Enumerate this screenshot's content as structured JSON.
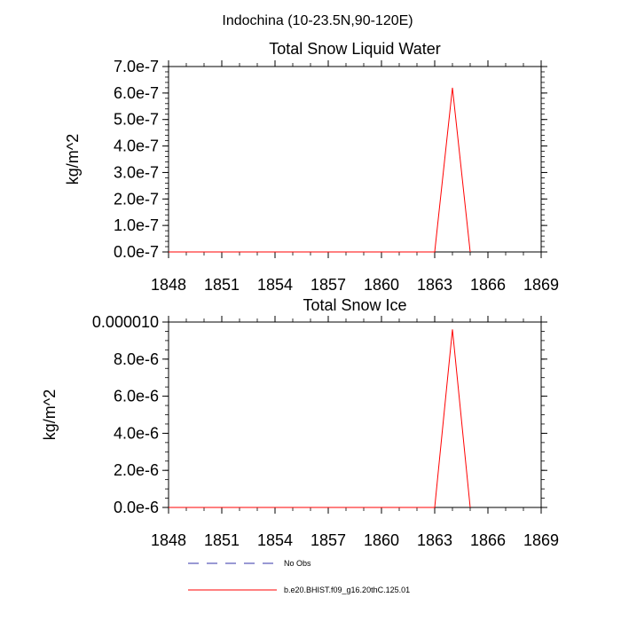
{
  "figure": {
    "title": "Indochina (10-23.5N,90-120E)"
  },
  "chart_data": [
    {
      "type": "line",
      "title": "Total Snow Liquid Water",
      "ylabel": "kg/m^2",
      "xlabel": "",
      "xlim": [
        1848,
        1869
      ],
      "xticks": [
        1848,
        1851,
        1854,
        1857,
        1860,
        1863,
        1866,
        1869
      ],
      "xtick_labels": [
        "1848",
        "1851",
        "1854",
        "1857",
        "1860",
        "1863",
        "1866",
        "1869"
      ],
      "ylim": [
        0,
        7e-07
      ],
      "yticks": [
        0,
        1e-07,
        2e-07,
        3e-07,
        4e-07,
        5e-07,
        6e-07,
        7e-07
      ],
      "ytick_labels": [
        "0.0e-7",
        "1.0e-7",
        "2.0e-7",
        "3.0e-7",
        "4.0e-7",
        "5.0e-7",
        "6.0e-7",
        "7.0e-7"
      ],
      "yminor_step": 2e-08,
      "xminor_step": 1,
      "grid": false,
      "series": [
        {
          "name": "b.e20.BHIST.f09_g16.20thC.125.01",
          "color": "#ff0000",
          "x": [
            1848,
            1849,
            1850,
            1851,
            1852,
            1853,
            1854,
            1855,
            1856,
            1857,
            1858,
            1859,
            1860,
            1861,
            1862,
            1863,
            1864,
            1865
          ],
          "values": [
            0,
            0,
            0,
            0,
            0,
            0,
            0,
            0,
            0,
            0,
            0,
            0,
            0,
            0,
            0,
            0,
            6.2e-07,
            0
          ]
        }
      ]
    },
    {
      "type": "line",
      "title": "Total Snow Ice",
      "ylabel": "kg/m^2",
      "xlabel": "",
      "xlim": [
        1848,
        1869
      ],
      "xticks": [
        1848,
        1851,
        1854,
        1857,
        1860,
        1863,
        1866,
        1869
      ],
      "xtick_labels": [
        "1848",
        "1851",
        "1854",
        "1857",
        "1860",
        "1863",
        "1866",
        "1869"
      ],
      "ylim": [
        0,
        1e-05
      ],
      "yticks": [
        0,
        2e-06,
        4e-06,
        6e-06,
        8e-06,
        1e-05
      ],
      "ytick_labels": [
        "0.0e-6",
        "2.0e-6",
        "4.0e-6",
        "6.0e-6",
        "8.0e-6",
        "0.000010"
      ],
      "yminor_step": 5e-07,
      "xminor_step": 1,
      "grid": false,
      "series": [
        {
          "name": "b.e20.BHIST.f09_g16.20thC.125.01",
          "color": "#ff0000",
          "x": [
            1848,
            1849,
            1850,
            1851,
            1852,
            1853,
            1854,
            1855,
            1856,
            1857,
            1858,
            1859,
            1860,
            1861,
            1862,
            1863,
            1864,
            1865
          ],
          "values": [
            0,
            0,
            0,
            0,
            0,
            0,
            0,
            0,
            0,
            0,
            0,
            0,
            0,
            0,
            0,
            0,
            9.6e-06,
            0
          ]
        }
      ]
    }
  ],
  "legend": {
    "placement": "bottom-center",
    "entries": [
      {
        "label": "No Obs",
        "color": "#3333aa",
        "style": "dashed"
      },
      {
        "label": "b.e20.BHIST.f09_g16.20thC.125.01",
        "color": "#ff0000",
        "style": "solid"
      }
    ]
  }
}
